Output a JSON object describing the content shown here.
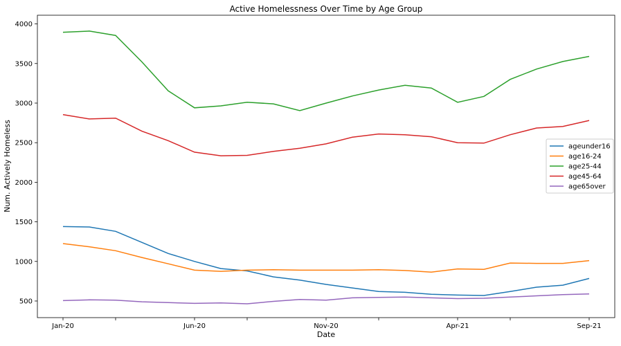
{
  "chart_data": {
    "type": "line",
    "title": "Active Homelessness Over Time by Age Group",
    "xlabel": "Date",
    "ylabel": "Num. Actively Homeless",
    "x": [
      "2020-01",
      "2020-02",
      "2020-03",
      "2020-04",
      "2020-05",
      "2020-06",
      "2020-07",
      "2020-08",
      "2020-09",
      "2020-10",
      "2020-11",
      "2020-12",
      "2021-01",
      "2021-02",
      "2021-03",
      "2021-04",
      "2021-05",
      "2021-06",
      "2021-07",
      "2021-08",
      "2021-09"
    ],
    "xticks": [
      {
        "x": "2020-01",
        "label": "Jan-20"
      },
      {
        "x": "2020-03",
        "label": ""
      },
      {
        "x": "2020-06",
        "label": "Jun-20"
      },
      {
        "x": "2020-08",
        "label": ""
      },
      {
        "x": "2020-11",
        "label": "Nov-20"
      },
      {
        "x": "2021-01",
        "label": ""
      },
      {
        "x": "2021-04",
        "label": "Apr-21"
      },
      {
        "x": "2021-06",
        "label": ""
      },
      {
        "x": "2021-09",
        "label": "Sep-21"
      }
    ],
    "yticks": [
      500,
      1000,
      1500,
      2000,
      2500,
      3000,
      3500,
      4000
    ],
    "ylim": [
      290,
      4110
    ],
    "legend_position": "center-right",
    "grid": false,
    "series": [
      {
        "name": "ageunder16",
        "color": "#1f77b4",
        "values": [
          1440,
          1435,
          1380,
          1240,
          1100,
          1000,
          910,
          880,
          805,
          765,
          710,
          665,
          620,
          610,
          585,
          575,
          570,
          620,
          675,
          700,
          785
        ]
      },
      {
        "name": "age16-24",
        "color": "#ff7f0e",
        "values": [
          1225,
          1185,
          1135,
          1050,
          970,
          890,
          875,
          890,
          895,
          890,
          890,
          890,
          895,
          885,
          865,
          905,
          900,
          980,
          975,
          975,
          1010
        ]
      },
      {
        "name": "age25-44",
        "color": "#2ca02c",
        "values": [
          3895,
          3910,
          3855,
          3520,
          3155,
          2940,
          2965,
          3010,
          2990,
          2905,
          3000,
          3090,
          3165,
          3225,
          3190,
          3010,
          3085,
          3300,
          3430,
          3525,
          3590
        ]
      },
      {
        "name": "age45-64",
        "color": "#d62728",
        "values": [
          2855,
          2800,
          2810,
          2645,
          2525,
          2380,
          2335,
          2340,
          2390,
          2430,
          2485,
          2570,
          2610,
          2600,
          2575,
          2500,
          2495,
          2600,
          2685,
          2705,
          2780
        ]
      },
      {
        "name": "age65over",
        "color": "#9467bd",
        "values": [
          505,
          515,
          510,
          490,
          480,
          470,
          475,
          465,
          495,
          520,
          510,
          540,
          545,
          550,
          540,
          530,
          535,
          550,
          565,
          580,
          590
        ]
      }
    ]
  }
}
